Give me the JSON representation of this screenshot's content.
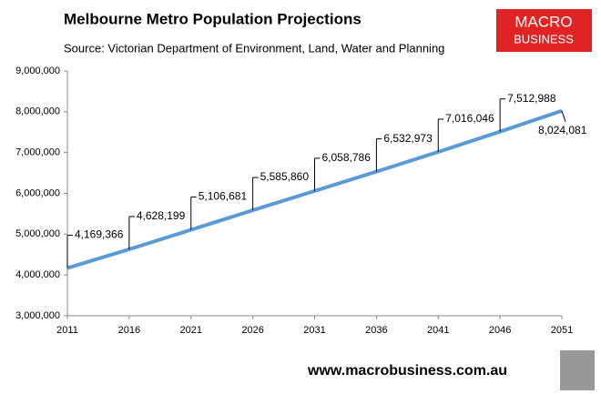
{
  "chart_data": {
    "type": "line",
    "title": "Melbourne Metro Population Projections",
    "subtitle": "Source: Victorian Department of Environment, Land, Water and Planning",
    "logo": [
      "MACRO",
      "BUSINESS"
    ],
    "footer": "www.macrobusiness.com.au",
    "x": [
      2011,
      2016,
      2021,
      2026,
      2031,
      2036,
      2041,
      2046,
      2051
    ],
    "series": [
      {
        "name": "Population",
        "color": "#5b9bd5",
        "values": [
          4169366,
          4628199,
          5106681,
          5585860,
          6058786,
          6532973,
          7016046,
          7512988,
          8024081
        ],
        "value_labels": [
          "4,169,366",
          "4,628,199",
          "5,106,681",
          "5,585,860",
          "6,058,786",
          "6,532,973",
          "7,016,046",
          "7,512,988",
          "8,024,081"
        ]
      }
    ],
    "xlim": [
      2011,
      2051
    ],
    "xticks": [
      2011,
      2016,
      2021,
      2026,
      2031,
      2036,
      2041,
      2046,
      2051
    ],
    "ylim": [
      3000000,
      9000000
    ],
    "yticks": [
      {
        "value": 3000000,
        "label": "3,000,000"
      },
      {
        "value": 4000000,
        "label": "4,000,000"
      },
      {
        "value": 5000000,
        "label": "5,000,000"
      },
      {
        "value": 6000000,
        "label": "6,000,000"
      },
      {
        "value": 7000000,
        "label": "7,000,000"
      },
      {
        "value": 8000000,
        "label": "8,000,000"
      },
      {
        "value": 9000000,
        "label": "9,000,000"
      }
    ],
    "grid": false
  }
}
